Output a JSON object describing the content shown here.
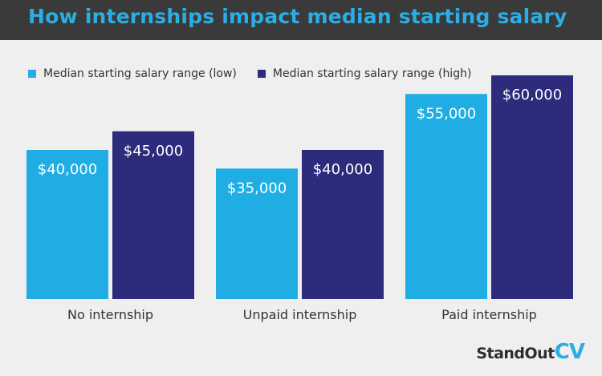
{
  "colors": {
    "low": "#1fade3",
    "high": "#2c2b7c",
    "header_bg": "#3a3a3a",
    "title": "#2aaee4"
  },
  "brand": {
    "part1": "StandOut",
    "part2": "CV"
  },
  "chart_data": {
    "type": "bar",
    "title": "How internships impact median starting salary",
    "categories": [
      "No internship",
      "Unpaid internship",
      "Paid internship"
    ],
    "series": [
      {
        "name": "Median starting salary range (low)",
        "values": [
          40000,
          35000,
          55000
        ],
        "labels": [
          "$40,000",
          "$35,000",
          "$55,000"
        ]
      },
      {
        "name": "Median starting salary range (high)",
        "values": [
          45000,
          40000,
          60000
        ],
        "labels": [
          "$45,000",
          "$40,000",
          "$60,000"
        ]
      }
    ],
    "xlabel": "",
    "ylabel": "",
    "ylim": [
      0,
      60000
    ],
    "grid": false,
    "legend": "top-left"
  }
}
